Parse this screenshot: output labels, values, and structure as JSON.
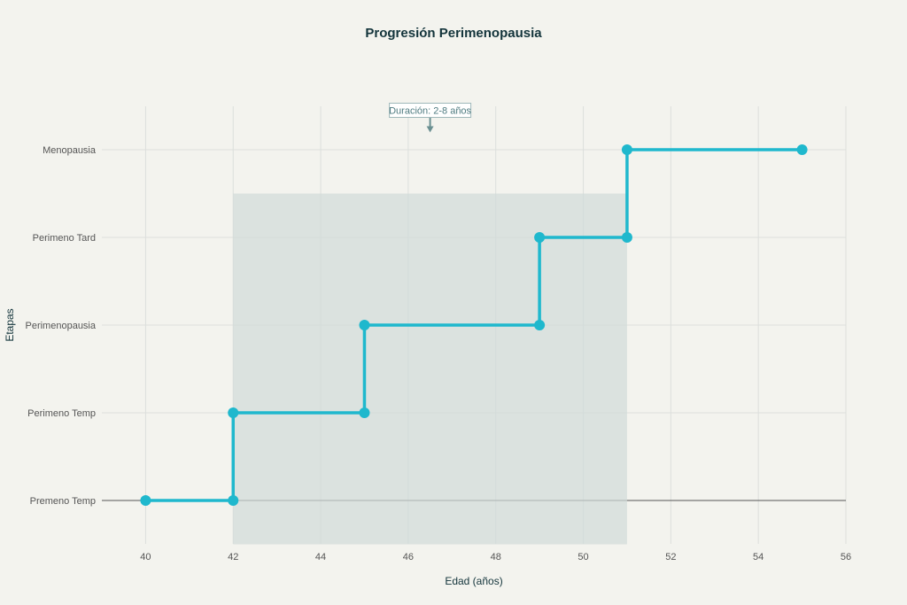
{
  "chart_data": {
    "type": "line",
    "title": "Progresión Perimenopausia",
    "xlabel": "Edad (años)",
    "ylabel": "Etapas",
    "xlim": [
      39,
      56
    ],
    "xticks": [
      40,
      42,
      44,
      46,
      48,
      50,
      52,
      54,
      56
    ],
    "categories": [
      "Premeno Temp",
      "Perimeno Temp",
      "Perimenopausia",
      "Perimeno Tard",
      "Menopausia"
    ],
    "series": [
      {
        "name": "Etapas",
        "color": "#1fb8cd",
        "x": [
          40,
          42,
          42,
          45,
          45,
          49,
          49,
          51,
          51,
          55
        ],
        "y": [
          "Premeno Temp",
          "Premeno Temp",
          "Perimeno Temp",
          "Perimeno Temp",
          "Perimenopausia",
          "Perimenopausia",
          "Perimeno Tard",
          "Perimeno Tard",
          "Menopausia",
          "Menopausia"
        ]
      }
    ],
    "shaded_region": {
      "x": [
        42,
        51
      ],
      "y": [
        -0.5,
        3.5
      ],
      "color": "#d0dad8"
    },
    "annotation": {
      "text": "Duración: 2-8 años",
      "x": 46.5,
      "y": 3.5
    }
  }
}
